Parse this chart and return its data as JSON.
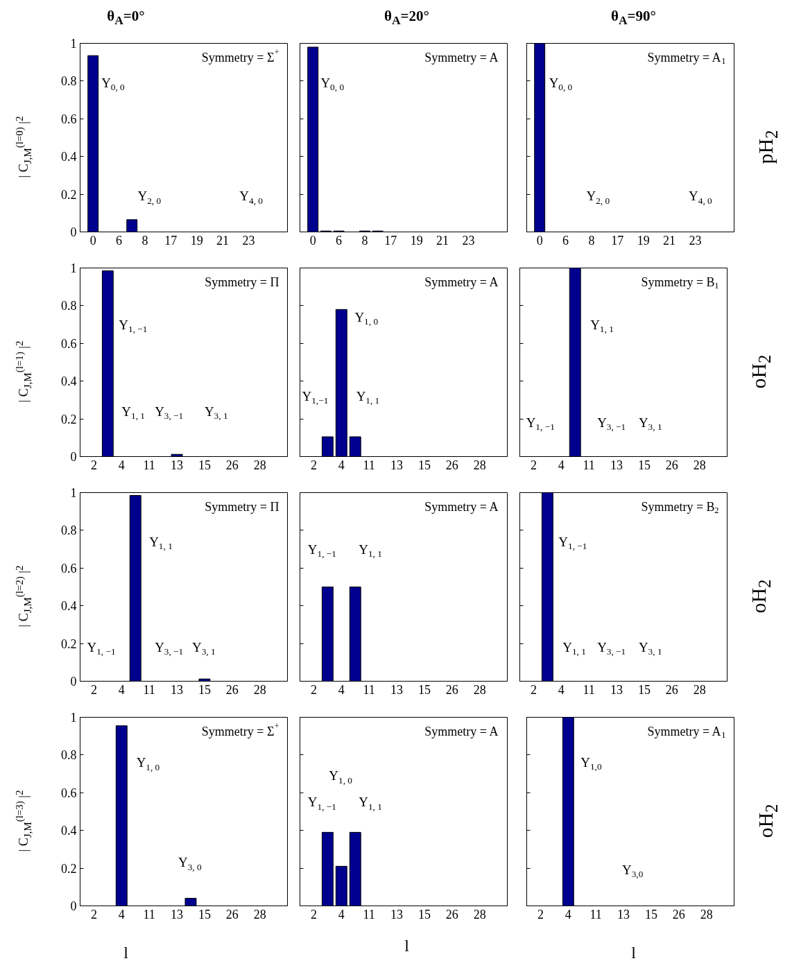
{
  "chart_data": [
    {
      "type": "bar",
      "title": "θ$_{A}$=0°",
      "ylabel": "| C$_{J,M}$$^{(l=0)}$ |$^{2}$",
      "color": "#00008f",
      "categories": [
        "0",
        null,
        "6",
        null,
        "8",
        null,
        "17",
        null,
        "19",
        null,
        "21",
        null,
        "23",
        null,
        null
      ],
      "values": [
        0.935,
        null,
        null,
        0.065,
        null,
        null,
        null,
        null,
        null,
        null,
        null,
        null,
        null,
        null,
        null
      ],
      "ylim": [
        0,
        1
      ],
      "yticks": [
        0,
        0.2,
        0.4,
        0.6,
        0.8,
        1
      ],
      "grid": false,
      "annotations": [
        "Symmetry = Σ$^{+}$",
        "Y$_{0, 0}$",
        "Y$_{2, 0}$",
        "Y$_{4, 0}$"
      ]
    },
    {
      "type": "bar",
      "title": "θ$_{A}$=20°",
      "color": "#00008f",
      "categories": [
        "0",
        null,
        "6",
        null,
        "8",
        null,
        "17",
        null,
        "19",
        null,
        "21",
        null,
        "23",
        null,
        null
      ],
      "values": [
        0.98,
        0.005,
        0.005,
        null,
        0.005,
        0.005,
        null,
        null,
        null,
        null,
        null,
        null,
        null,
        null,
        null
      ],
      "ylim": [
        0,
        1
      ],
      "yticks": [
        0,
        0.2,
        0.4,
        0.6,
        0.8,
        1
      ],
      "grid": false,
      "tick_labels": "x",
      "annotations": [
        "Symmetry = A",
        "Y$_{0, 0}$"
      ]
    },
    {
      "type": "bar",
      "title": "θ$_{A}$=90°",
      "y2label": "pH$_{2}$",
      "color": "#00008f",
      "categories": [
        "0",
        null,
        "6",
        null,
        "8",
        null,
        "17",
        null,
        "19",
        null,
        "21",
        null,
        "23",
        null,
        null
      ],
      "values": [
        1.0,
        null,
        null,
        null,
        null,
        null,
        null,
        null,
        null,
        null,
        null,
        null,
        null,
        null,
        null
      ],
      "ylim": [
        0,
        1
      ],
      "yticks": [
        0,
        0.2,
        0.4,
        0.6,
        0.8,
        1
      ],
      "grid": false,
      "tick_labels": "x",
      "annotations": [
        "Symmetry = A$_{1}$",
        "Y$_{0, 0}$",
        "Y$_{2, 0}$",
        "Y$_{4, 0}$"
      ]
    },
    {
      "type": "bar",
      "ylabel": "| C$_{J,M}$$^{(l=1)}$ |$^{2}$",
      "color": "#00008f",
      "categories": [
        "2",
        null,
        "4",
        null,
        "11",
        null,
        "13",
        null,
        "15",
        null,
        "26",
        null,
        "28",
        null
      ],
      "values": [
        null,
        0.985,
        null,
        null,
        null,
        null,
        0.012,
        null,
        null,
        null,
        null,
        null,
        null,
        null
      ],
      "ylim": [
        0,
        1
      ],
      "yticks": [
        0,
        0.2,
        0.4,
        0.6,
        0.8,
        1
      ],
      "grid": false,
      "annotations": [
        "Symmetry = Π",
        "Y$_{1, −1}$",
        "Y$_{1, 1}$",
        "Y$_{3, −1}$",
        "Y$_{3, 1}$"
      ]
    },
    {
      "type": "bar",
      "color": "#00008f",
      "categories": [
        "2",
        null,
        "4",
        null,
        "11",
        null,
        "13",
        null,
        "15",
        null,
        "26",
        null,
        "28",
        null
      ],
      "values": [
        null,
        0.105,
        0.78,
        0.105,
        null,
        null,
        null,
        null,
        null,
        null,
        null,
        null,
        null,
        null
      ],
      "ylim": [
        0,
        1
      ],
      "yticks": [
        0,
        0.2,
        0.4,
        0.6,
        0.8,
        1
      ],
      "grid": false,
      "tick_labels": "x",
      "annotations": [
        "Symmetry = A",
        "Y$_{1,−1}$",
        "Y$_{1, 0}$",
        "Y$_{1, 1}$"
      ]
    },
    {
      "type": "bar",
      "y2label": "oH$_{2}$",
      "color": "#00008f",
      "categories": [
        "2",
        null,
        "4",
        null,
        "11",
        null,
        "13",
        null,
        "15",
        null,
        "26",
        null,
        "28",
        null
      ],
      "values": [
        null,
        null,
        null,
        1.0,
        null,
        null,
        null,
        null,
        null,
        null,
        null,
        null,
        null,
        null
      ],
      "ylim": [
        0,
        1
      ],
      "yticks": [
        0,
        0.2,
        0.4,
        0.6,
        0.8,
        1
      ],
      "grid": false,
      "tick_labels": "x",
      "annotations": [
        "Symmetry = B$_{1}$",
        "Y$_{1, −1}$",
        "Y$_{1, 1}$",
        "Y$_{3, −1}$",
        "Y$_{3, 1}$"
      ]
    },
    {
      "type": "bar",
      "ylabel": "| C$_{J,M}$$^{(l=2)}$ |$^{2}$",
      "color": "#00008f",
      "categories": [
        "2",
        null,
        "4",
        null,
        "11",
        null,
        "13",
        null,
        "15",
        null,
        "26",
        null,
        "28",
        null
      ],
      "values": [
        null,
        null,
        null,
        0.985,
        null,
        null,
        null,
        null,
        0.012,
        null,
        null,
        null,
        null,
        null
      ],
      "ylim": [
        0,
        1
      ],
      "yticks": [
        0,
        0.2,
        0.4,
        0.6,
        0.8,
        1
      ],
      "grid": false,
      "annotations": [
        "Symmetry = Π",
        "Y$_{1, −1}$",
        "Y$_{1, 1}$",
        "Y$_{3, −1}$",
        "Y$_{3, 1}$"
      ]
    },
    {
      "type": "bar",
      "color": "#00008f",
      "categories": [
        "2",
        null,
        "4",
        null,
        "11",
        null,
        "13",
        null,
        "15",
        null,
        "26",
        null,
        "28",
        null
      ],
      "values": [
        null,
        0.5,
        null,
        0.5,
        null,
        null,
        null,
        null,
        null,
        null,
        null,
        null,
        null,
        null
      ],
      "ylim": [
        0,
        1
      ],
      "yticks": [
        0,
        0.2,
        0.4,
        0.6,
        0.8,
        1
      ],
      "grid": false,
      "tick_labels": "x",
      "annotations": [
        "Symmetry = A",
        "Y$_{1, −1}$",
        "Y$_{1, 1}$"
      ]
    },
    {
      "type": "bar",
      "y2label": "oH$_{2}$",
      "color": "#00008f",
      "categories": [
        "2",
        null,
        "4",
        null,
        "11",
        null,
        "13",
        null,
        "15",
        null,
        "26",
        null,
        "28",
        null
      ],
      "values": [
        null,
        1.0,
        null,
        null,
        null,
        null,
        null,
        null,
        null,
        null,
        null,
        null,
        null,
        null
      ],
      "ylim": [
        0,
        1
      ],
      "yticks": [
        0,
        0.2,
        0.4,
        0.6,
        0.8,
        1
      ],
      "grid": false,
      "tick_labels": "x",
      "annotations": [
        "Symmetry = B$_{2}$",
        "Y$_{1, −1}$",
        "Y$_{1, 1}$",
        "Y$_{3, −1}$",
        "Y$_{3, 1}$"
      ]
    },
    {
      "type": "bar",
      "ylabel": "| C$_{J,M}$$^{(l=3)}$ |$^{2}$",
      "xlabel": "l",
      "color": "#00008f",
      "categories": [
        "2",
        null,
        "4",
        null,
        "11",
        null,
        "13",
        null,
        "15",
        null,
        "26",
        null,
        "28",
        null
      ],
      "values": [
        null,
        null,
        0.955,
        null,
        null,
        null,
        null,
        0.04,
        null,
        null,
        null,
        null,
        null,
        null
      ],
      "ylim": [
        0,
        1
      ],
      "yticks": [
        0,
        0.2,
        0.4,
        0.6,
        0.8,
        1
      ],
      "grid": false,
      "annotations": [
        "Symmetry = Σ$^{+}$",
        "Y$_{1, 0}$",
        "Y$_{3, 0}$"
      ]
    },
    {
      "type": "bar",
      "xlabel": "l",
      "color": "#00008f",
      "categories": [
        "2",
        null,
        "4",
        null,
        "11",
        null,
        "13",
        null,
        "15",
        null,
        "26",
        null,
        "28",
        null
      ],
      "values": [
        null,
        0.39,
        0.21,
        0.39,
        null,
        null,
        null,
        null,
        null,
        null,
        null,
        null,
        null,
        null
      ],
      "ylim": [
        0,
        1
      ],
      "yticks": [
        0,
        0.2,
        0.4,
        0.6,
        0.8,
        1
      ],
      "grid": false,
      "tick_labels": "x",
      "annotations": [
        "Symmetry = A",
        "Y$_{1, 0}$",
        "Y$_{1, −1}$",
        "Y$_{1, 1}$"
      ]
    },
    {
      "type": "bar",
      "xlabel": "l",
      "y2label": "oH$_{2}$",
      "color": "#00008f",
      "categories": [
        "2",
        null,
        "4",
        null,
        "11",
        null,
        "13",
        null,
        "15",
        null,
        "26",
        null,
        "28",
        null
      ],
      "values": [
        null,
        null,
        1.0,
        null,
        null,
        null,
        null,
        null,
        null,
        null,
        null,
        null,
        null,
        null
      ],
      "ylim": [
        0,
        1
      ],
      "yticks": [
        0,
        0.2,
        0.4,
        0.6,
        0.8,
        1
      ],
      "grid": false,
      "tick_labels": "x",
      "annotations": [
        "Symmetry = A$_{1}$",
        "Y$_{1,0}$",
        "Y$_{3,0}$"
      ]
    }
  ]
}
